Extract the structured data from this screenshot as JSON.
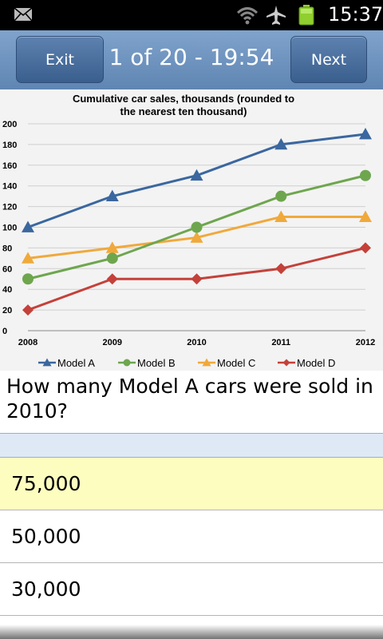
{
  "status_bar": {
    "time": "15:37",
    "icons": [
      "mail-icon",
      "wifi-icon",
      "airplane-icon",
      "battery-icon"
    ]
  },
  "header": {
    "exit_label": "Exit",
    "progress_text": "1 of 20 - 19:54",
    "next_label": "Next"
  },
  "chart_data": {
    "type": "line",
    "title_line1": "Cumulative car sales, thousands (rounded to",
    "title_line2": "the nearest ten thousand)",
    "x": [
      "2008",
      "2009",
      "2010",
      "2011",
      "2012"
    ],
    "y_ticks": [
      "0",
      "20",
      "40",
      "60",
      "80",
      "100",
      "120",
      "140",
      "160",
      "180",
      "200"
    ],
    "ylim": [
      0,
      200
    ],
    "grid": true,
    "legend_position": "bottom",
    "series": [
      {
        "name": "Model A",
        "values": [
          100,
          130,
          150,
          180,
          190
        ],
        "color": "#3a679f",
        "marker": "triangle"
      },
      {
        "name": "Model B",
        "values": [
          50,
          70,
          100,
          130,
          150
        ],
        "color": "#6ea64e",
        "marker": "circle"
      },
      {
        "name": "Model C",
        "values": [
          70,
          80,
          90,
          110,
          110
        ],
        "color": "#f0a93b",
        "marker": "triangle"
      },
      {
        "name": "Model D",
        "values": [
          20,
          50,
          50,
          60,
          80
        ],
        "color": "#c4413a",
        "marker": "diamond"
      }
    ]
  },
  "question": {
    "text": "How many Model A cars were sold in 2010?"
  },
  "answers": [
    {
      "label": "75,000",
      "selected": true
    },
    {
      "label": "50,000",
      "selected": false
    },
    {
      "label": "30,000",
      "selected": false
    }
  ],
  "colors": {
    "header": "#6c90bd",
    "selected": "#fdfdc0",
    "band": "#dfe9f6"
  }
}
